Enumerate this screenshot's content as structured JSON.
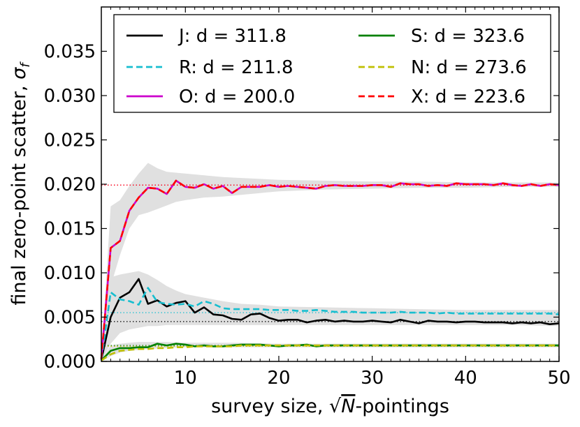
{
  "chart_data": {
    "type": "line",
    "title": "",
    "xlabel": "survey size, √N-pointings",
    "xlabel_parts": {
      "before": "survey size, ",
      "sqrt": "√",
      "var": "N",
      "after": "-pointings"
    },
    "ylabel": "final zero-point scatter, σf",
    "ylabel_parts": {
      "main": "final zero-point scatter, ",
      "sym": "σ",
      "sub": "f"
    },
    "xlim": [
      1,
      50
    ],
    "ylim": [
      0.0,
      0.04
    ],
    "xticks": [
      10,
      20,
      30,
      40,
      50
    ],
    "xtick_labels": [
      "10",
      "20",
      "30",
      "40",
      "50"
    ],
    "yticks": [
      0.0,
      0.005,
      0.01,
      0.015,
      0.02,
      0.025,
      0.03,
      0.035
    ],
    "ytick_labels": [
      "0.000",
      "0.005",
      "0.010",
      "0.015",
      "0.020",
      "0.025",
      "0.030",
      "0.035"
    ],
    "grid": false,
    "legend_position": "top",
    "x": [
      1,
      2,
      3,
      4,
      5,
      6,
      7,
      8,
      9,
      10,
      11,
      12,
      13,
      14,
      15,
      16,
      17,
      18,
      19,
      20,
      21,
      22,
      23,
      24,
      25,
      26,
      27,
      28,
      29,
      30,
      31,
      32,
      33,
      34,
      35,
      36,
      37,
      38,
      39,
      40,
      41,
      42,
      43,
      44,
      45,
      46,
      47,
      48,
      49,
      50
    ],
    "series": [
      {
        "name": "J: d = 311.8",
        "color": "#000000",
        "dash": "solid",
        "expected": 0.0045,
        "values": [
          0.0002,
          0.005,
          0.0072,
          0.0078,
          0.0093,
          0.0065,
          0.0069,
          0.0062,
          0.0066,
          0.0068,
          0.0055,
          0.0061,
          0.0053,
          0.0052,
          0.0048,
          0.0047,
          0.0053,
          0.0054,
          0.0049,
          0.0046,
          0.0047,
          0.0047,
          0.0044,
          0.0046,
          0.0047,
          0.0045,
          0.0046,
          0.0045,
          0.0045,
          0.0046,
          0.0045,
          0.0044,
          0.0047,
          0.0045,
          0.0043,
          0.0046,
          0.0045,
          0.0045,
          0.0044,
          0.0045,
          0.0045,
          0.0044,
          0.0044,
          0.0044,
          0.0043,
          0.0044,
          0.0043,
          0.0044,
          0.0042,
          0.0043
        ]
      },
      {
        "name": "R: d = 211.8",
        "color": "#17BECF",
        "dash": "dashed",
        "expected": 0.0055,
        "values": [
          0.0002,
          0.0078,
          0.007,
          0.0068,
          0.0064,
          0.0083,
          0.0067,
          0.0065,
          0.0064,
          0.0065,
          0.0062,
          0.0068,
          0.0065,
          0.006,
          0.0059,
          0.0059,
          0.0059,
          0.0059,
          0.0058,
          0.0058,
          0.0058,
          0.0057,
          0.0057,
          0.0058,
          0.0057,
          0.0056,
          0.0056,
          0.0056,
          0.0055,
          0.0055,
          0.0055,
          0.0055,
          0.0056,
          0.0055,
          0.0055,
          0.0055,
          0.0054,
          0.0055,
          0.0054,
          0.0054,
          0.0054,
          0.0054,
          0.0054,
          0.0054,
          0.0054,
          0.0054,
          0.0054,
          0.0054,
          0.0054,
          0.0053
        ]
      },
      {
        "name": "O: d = 200.0",
        "color": "#CC00CC",
        "dash": "solid",
        "expected": 0.0199,
        "values": [
          0.0003,
          0.0128,
          0.0136,
          0.017,
          0.0185,
          0.0196,
          0.0195,
          0.0189,
          0.0204,
          0.0197,
          0.0196,
          0.02,
          0.0195,
          0.0198,
          0.019,
          0.0197,
          0.0197,
          0.0197,
          0.0199,
          0.0197,
          0.0198,
          0.0197,
          0.0196,
          0.0195,
          0.0198,
          0.0199,
          0.0198,
          0.0198,
          0.0198,
          0.0199,
          0.0199,
          0.0197,
          0.0201,
          0.02,
          0.02,
          0.0198,
          0.0199,
          0.0198,
          0.0201,
          0.02,
          0.02,
          0.02,
          0.0199,
          0.0201,
          0.0199,
          0.0198,
          0.02,
          0.0198,
          0.02,
          0.0199
        ]
      },
      {
        "name": "S: d = 323.6",
        "color": "#008000",
        "dash": "solid",
        "expected": 0.0018,
        "values": [
          0.0001,
          0.0012,
          0.0015,
          0.0015,
          0.0016,
          0.0016,
          0.002,
          0.0018,
          0.002,
          0.0019,
          0.0017,
          0.0018,
          0.0017,
          0.0017,
          0.0018,
          0.0019,
          0.0019,
          0.0019,
          0.0018,
          0.0017,
          0.0018,
          0.0018,
          0.0019,
          0.0017,
          0.0018,
          0.0018,
          0.0018,
          0.0018,
          0.0018,
          0.0018,
          0.0018,
          0.0018,
          0.0018,
          0.0018,
          0.0018,
          0.0018,
          0.0018,
          0.0018,
          0.0018,
          0.0018,
          0.0018,
          0.0018,
          0.0018,
          0.0018,
          0.0018,
          0.0018,
          0.0018,
          0.0018,
          0.0018,
          0.0018
        ]
      },
      {
        "name": "N: d = 273.6",
        "color": "#BFBF00",
        "dash": "dashed",
        "expected": 0.0017,
        "values": [
          0.0001,
          0.0008,
          0.0012,
          0.0013,
          0.0014,
          0.0014,
          0.0015,
          0.0015,
          0.0016,
          0.0016,
          0.0017,
          0.0017,
          0.0017,
          0.0017,
          0.0017,
          0.0018,
          0.0018,
          0.0018,
          0.0018,
          0.0018,
          0.0018,
          0.0018,
          0.0018,
          0.0018,
          0.0018,
          0.0018,
          0.0018,
          0.0018,
          0.0018,
          0.0018,
          0.0018,
          0.0018,
          0.0018,
          0.0018,
          0.0018,
          0.0018,
          0.0018,
          0.0018,
          0.0018,
          0.0018,
          0.0018,
          0.0018,
          0.0018,
          0.0018,
          0.0018,
          0.0018,
          0.0018,
          0.0018,
          0.0018,
          0.0018
        ]
      },
      {
        "name": "X: d = 223.6",
        "color": "#FF0000",
        "dash": "dashed",
        "expected": 0.0199,
        "values": [
          0.0003,
          0.0128,
          0.0136,
          0.017,
          0.0185,
          0.0196,
          0.0195,
          0.0189,
          0.0204,
          0.0197,
          0.0196,
          0.02,
          0.0195,
          0.0198,
          0.019,
          0.0197,
          0.0197,
          0.0197,
          0.0199,
          0.0197,
          0.0198,
          0.0197,
          0.0196,
          0.0195,
          0.0198,
          0.0199,
          0.0198,
          0.0198,
          0.0198,
          0.0199,
          0.0199,
          0.0197,
          0.0201,
          0.02,
          0.02,
          0.0198,
          0.0199,
          0.0198,
          0.0201,
          0.02,
          0.02,
          0.02,
          0.0199,
          0.0201,
          0.0199,
          0.0198,
          0.02,
          0.0198,
          0.02,
          0.0199
        ]
      }
    ],
    "bands": [
      {
        "x": [
          1,
          2,
          3,
          4,
          5,
          6,
          7,
          8,
          9,
          10,
          12,
          14,
          16,
          18,
          20,
          25,
          30,
          35,
          40,
          45,
          50
        ],
        "lower": [
          0.0,
          0.0085,
          0.012,
          0.015,
          0.0165,
          0.0168,
          0.0172,
          0.0176,
          0.018,
          0.0182,
          0.0185,
          0.0186,
          0.0188,
          0.019,
          0.0192,
          0.0194,
          0.0195,
          0.0196,
          0.0196,
          0.0197,
          0.0197
        ],
        "upper": [
          0.0003,
          0.0175,
          0.0182,
          0.0198,
          0.0212,
          0.0224,
          0.0218,
          0.0214,
          0.0213,
          0.0212,
          0.021,
          0.0208,
          0.0207,
          0.0206,
          0.0205,
          0.0204,
          0.0203,
          0.0203,
          0.0202,
          0.0202,
          0.0202
        ]
      },
      {
        "x": [
          1,
          2,
          3,
          4,
          5,
          6,
          7,
          8,
          9,
          10,
          12,
          14,
          16,
          18,
          20,
          25,
          30,
          35,
          40,
          45,
          50
        ],
        "lower": [
          0.0,
          0.002,
          0.0032,
          0.0036,
          0.0038,
          0.004,
          0.004,
          0.0041,
          0.0041,
          0.0041,
          0.0041,
          0.0041,
          0.0041,
          0.0041,
          0.0041,
          0.0041,
          0.0041,
          0.0041,
          0.0041,
          0.0041,
          0.004
        ],
        "upper": [
          0.0002,
          0.0095,
          0.0098,
          0.01,
          0.0102,
          0.0098,
          0.0092,
          0.0085,
          0.008,
          0.0076,
          0.0072,
          0.0068,
          0.0065,
          0.0064,
          0.0062,
          0.0061,
          0.006,
          0.0059,
          0.0058,
          0.0058,
          0.0058
        ]
      },
      {
        "x": [
          1,
          2,
          3,
          4,
          5,
          6,
          8,
          10,
          15,
          20,
          30,
          40,
          50
        ],
        "lower": [
          0.0,
          0.0006,
          0.001,
          0.0012,
          0.0013,
          0.0014,
          0.0015,
          0.0016,
          0.0016,
          0.0016,
          0.0016,
          0.0016,
          0.0016
        ],
        "upper": [
          0.0001,
          0.0018,
          0.002,
          0.0021,
          0.0022,
          0.0022,
          0.0022,
          0.0021,
          0.0021,
          0.002,
          0.002,
          0.002,
          0.002
        ]
      }
    ],
    "band_color": "#E0E0E0"
  }
}
